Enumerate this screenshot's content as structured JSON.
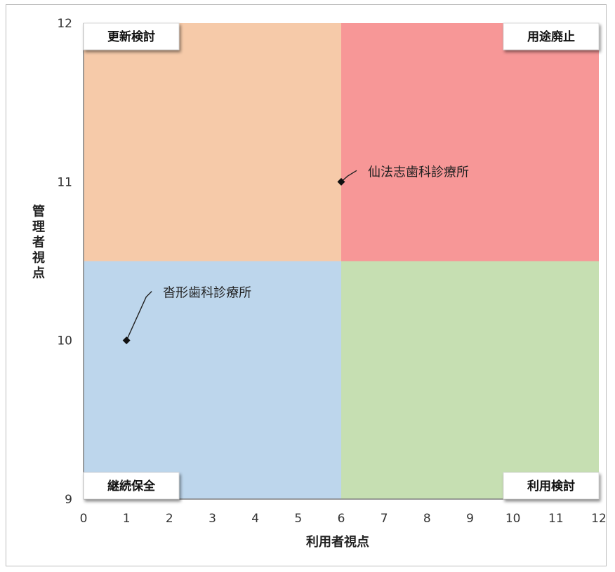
{
  "chart_data": {
    "type": "scatter",
    "xlabel": "利用者視点",
    "ylabel": "管理者視点",
    "xlim": [
      0,
      12
    ],
    "ylim": [
      9,
      12
    ],
    "x_ticks": [
      "0",
      "1",
      "2",
      "3",
      "4",
      "5",
      "6",
      "7",
      "8",
      "9",
      "10",
      "11",
      "12"
    ],
    "y_ticks": [
      "9",
      "10",
      "11",
      "12"
    ],
    "quadrants": [
      {
        "label": "更新検討",
        "x": [
          0,
          6
        ],
        "y": [
          10.5,
          12
        ],
        "color": "#f6caa9",
        "label_pos": "top-left"
      },
      {
        "label": "用途廃止",
        "x": [
          6,
          12
        ],
        "y": [
          10.5,
          12
        ],
        "color": "#f79797",
        "label_pos": "top-right"
      },
      {
        "label": "継続保全",
        "x": [
          0,
          6
        ],
        "y": [
          9,
          10.5
        ],
        "color": "#bdd6ec",
        "label_pos": "bottom-left"
      },
      {
        "label": "利用検討",
        "x": [
          6,
          12
        ],
        "y": [
          9,
          10.5
        ],
        "color": "#c6dfb2",
        "label_pos": "bottom-right"
      }
    ],
    "points": [
      {
        "x": 6,
        "y": 11,
        "label": "仙法志歯科診療所"
      },
      {
        "x": 1,
        "y": 10,
        "label": "沓形歯科診療所"
      }
    ],
    "grid": false,
    "legend": "none"
  }
}
